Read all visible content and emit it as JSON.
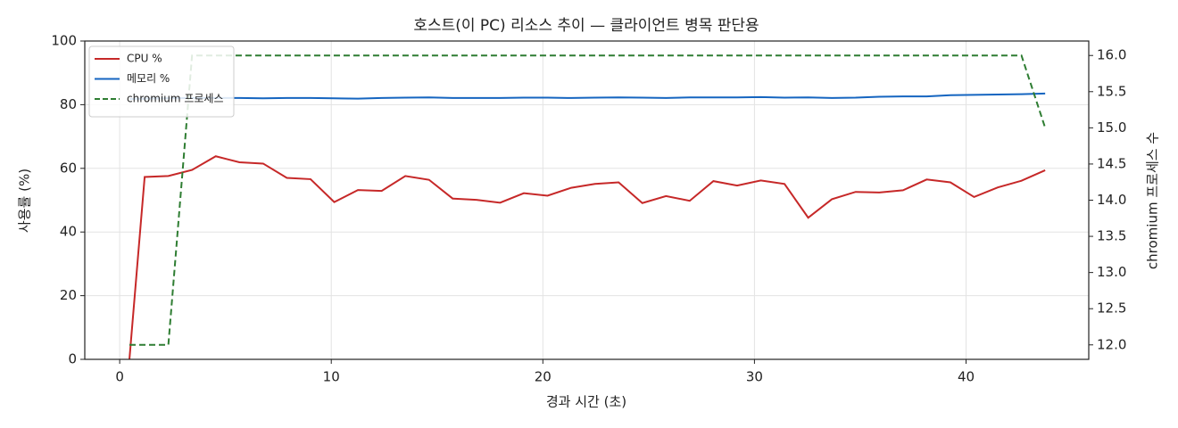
{
  "chart_data": {
    "type": "line",
    "title": "호스트(이 PC) 리소스 추이 — 클라이언트 병목 판단용",
    "x_label": "경과 시간 (초)",
    "y_label": "사용률 (%)",
    "y2_label": "chromium 프로세스 수",
    "x": [
      0.46,
      1.18,
      2.3,
      3.42,
      4.54,
      5.66,
      6.78,
      7.9,
      9.02,
      10.14,
      11.26,
      12.38,
      13.5,
      14.62,
      15.74,
      16.86,
      17.98,
      19.1,
      20.22,
      21.34,
      22.46,
      23.58,
      24.7,
      25.82,
      26.94,
      28.06,
      29.18,
      30.3,
      31.42,
      32.54,
      33.66,
      34.78,
      35.9,
      37.02,
      38.14,
      39.26,
      40.38,
      41.5,
      42.62,
      43.74
    ],
    "series": [
      {
        "name": "CPU %",
        "color": "#c62828",
        "values": [
          0,
          57.3,
          57.6,
          59.5,
          63.8,
          61.9,
          61.5,
          57.0,
          56.6,
          49.4,
          53.2,
          52.9,
          57.6,
          56.4,
          50.5,
          50.1,
          49.2,
          52.2,
          51.4,
          53.9,
          55.1,
          55.6,
          49.1,
          51.3,
          49.8,
          56.0,
          54.6,
          56.2,
          55.1,
          44.5,
          50.3,
          52.6,
          52.4,
          53.1,
          56.5,
          55.6,
          51.0,
          54.0,
          56.1,
          59.4
        ]
      },
      {
        "name": "메모리 %",
        "color": "#1565c0",
        "values": [
          81.8,
          81.9,
          82.0,
          82.1,
          82.1,
          82.1,
          82.0,
          82.1,
          82.1,
          82.0,
          81.9,
          82.1,
          82.2,
          82.3,
          82.1,
          82.1,
          82.1,
          82.2,
          82.2,
          82.1,
          82.2,
          82.3,
          82.2,
          82.1,
          82.3,
          82.3,
          82.3,
          82.4,
          82.2,
          82.3,
          82.1,
          82.2,
          82.5,
          82.6,
          82.6,
          83.0,
          83.1,
          83.2,
          83.3,
          83.5
        ]
      },
      {
        "name": "chromium 프로세스",
        "color": "#2e7d32",
        "linestyle": "dashed",
        "axis": "y2",
        "values": [
          12,
          12,
          12,
          16,
          16,
          16,
          16,
          16,
          16,
          16,
          16,
          16,
          16,
          16,
          16,
          16,
          16,
          16,
          16,
          16,
          16,
          16,
          16,
          16,
          16,
          16,
          16,
          16,
          16,
          16,
          16,
          16,
          16,
          16,
          16,
          16,
          16,
          16,
          16,
          15
        ]
      }
    ],
    "xlim": [
      -1.65,
      45.8
    ],
    "xticks": [
      0,
      10,
      20,
      30,
      40
    ],
    "ylim": [
      0,
      100
    ],
    "yticks": [
      0,
      20,
      40,
      60,
      80,
      100
    ],
    "y2lim": [
      11.8,
      16.2
    ],
    "y2ticks": [
      {
        "value": 12,
        "label": "12.0"
      },
      {
        "value": 12.5,
        "label": "12.5"
      },
      {
        "value": 13,
        "label": "13.0"
      },
      {
        "value": 13.5,
        "label": "13.5"
      },
      {
        "value": 14,
        "label": "14.0"
      },
      {
        "value": 14.5,
        "label": "14.5"
      },
      {
        "value": 15,
        "label": "15.0"
      },
      {
        "value": 15.5,
        "label": "15.5"
      },
      {
        "value": 16,
        "label": "16.0"
      }
    ],
    "grid": true,
    "legend": "upper left"
  }
}
